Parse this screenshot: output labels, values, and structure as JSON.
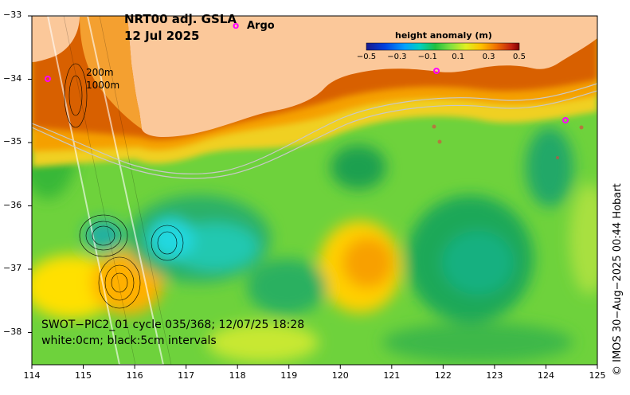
{
  "map": {
    "title_line1": "NRT00 adj. GSLA",
    "title_line2": "12 Jul 2025",
    "legend_argo": "Argo",
    "argo_marker": "o",
    "depth_labels": [
      "200m",
      "1000m"
    ],
    "colorbar": {
      "title": "height anomaly (m)",
      "ticks": [
        "−0.5",
        "−0.3",
        "−0.1",
        "0.1",
        "0.3",
        "0.5"
      ],
      "colors": [
        "#1a1a8c",
        "#0030e0",
        "#0080ff",
        "#00c8ff",
        "#00d8b0",
        "#00c060",
        "#40c840",
        "#90e040",
        "#d8f020",
        "#ffe000",
        "#ffb000",
        "#f08000",
        "#e05000",
        "#c02010",
        "#800000"
      ]
    },
    "swath_caption_line1": "SWOT−PIC2_01 cycle 035/368; 12/07/25 18:28",
    "swath_caption_line2": "white:0cm; black:5cm intervals",
    "credit": "© IMOS 30−Aug−2025 00:44 Hobart",
    "x_ticks": [
      "114",
      "115",
      "116",
      "117",
      "118",
      "119",
      "120",
      "121",
      "122",
      "123",
      "124",
      "125"
    ],
    "y_ticks": [
      "−33",
      "−34",
      "−35",
      "−36",
      "−37",
      "−38"
    ],
    "land_color": "#fbc89a",
    "argo_color": "#ff00ff"
  }
}
